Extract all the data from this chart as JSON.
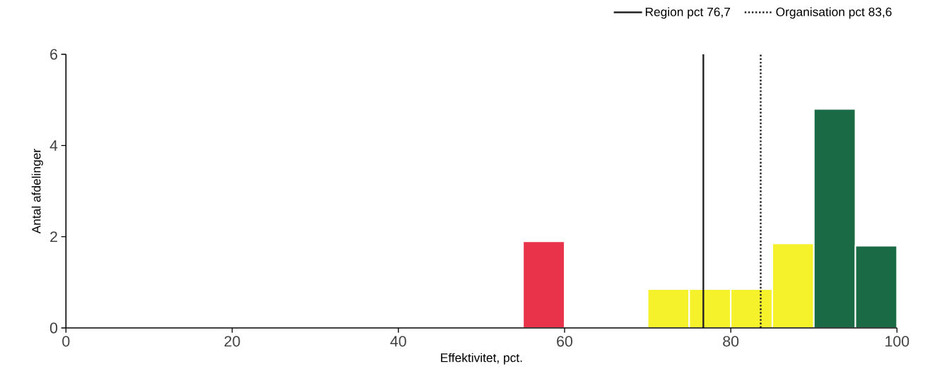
{
  "chart_data": {
    "type": "histogram",
    "xlabel": "Effektivitet, pct.",
    "ylabel": "Antal afdelinger",
    "bins": [
      55,
      60,
      65,
      70,
      75,
      80,
      85,
      90,
      95,
      100
    ],
    "values": [
      1.9,
      0,
      0,
      0.85,
      0.85,
      0.85,
      1.85,
      4.8,
      1.8
    ],
    "colors": [
      "#e8334a",
      "#e8334a",
      "#e8334a",
      "#f5f12a",
      "#f5f12a",
      "#f5f12a",
      "#f5f12a",
      "#1a6b45",
      "#1a6b45"
    ],
    "xlim": [
      0,
      100
    ],
    "xticks": [
      0,
      20,
      40,
      60,
      80,
      100
    ],
    "ylim": [
      0,
      6
    ],
    "yticks": [
      0,
      2,
      4,
      6
    ],
    "ref_lines": [
      {
        "axis": "x",
        "value": 76.7,
        "label": "Region pct 76,7",
        "color": "#222222",
        "line_style": "solid"
      },
      {
        "axis": "x",
        "value": 83.6,
        "label": "Organisation pct 83,6",
        "color": "#222222",
        "line_style": "dotted"
      }
    ],
    "legend": "top right",
    "grid": false
  }
}
